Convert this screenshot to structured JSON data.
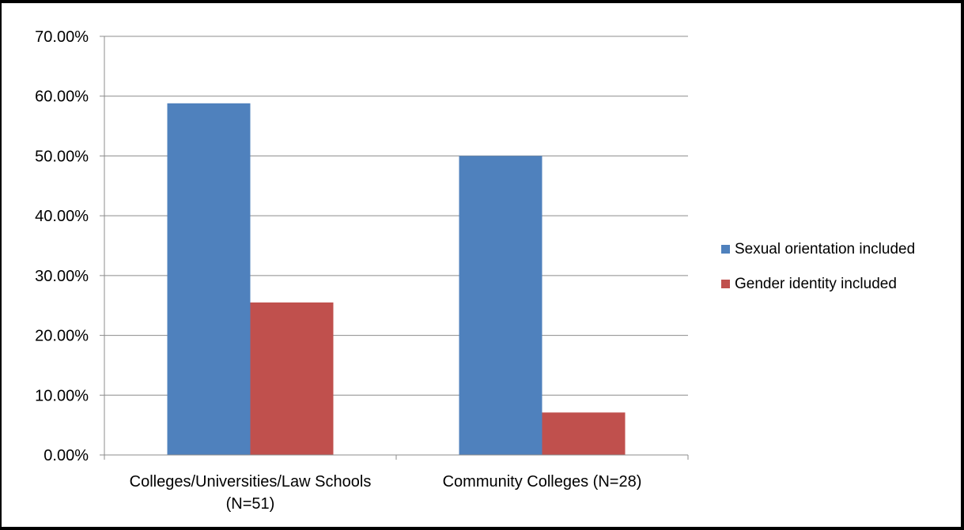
{
  "chart_data": {
    "type": "bar",
    "title": "",
    "xlabel": "",
    "ylabel": "",
    "categories": [
      "Colleges/Universities/Law Schools (N=51)",
      "Community Colleges (N=28)"
    ],
    "category_lines": [
      [
        "Colleges/Universities/Law Schools",
        "(N=51)"
      ],
      [
        "Community Colleges (N=28)"
      ]
    ],
    "series": [
      {
        "name": "Sexual orientation included",
        "color": "#4f81bd",
        "values": [
          58.8,
          50.0
        ]
      },
      {
        "name": "Gender identity included",
        "color": "#c0504d",
        "values": [
          25.5,
          7.1
        ]
      }
    ],
    "ylim": [
      0,
      70
    ],
    "yticks": [
      0,
      10,
      20,
      30,
      40,
      50,
      60,
      70
    ],
    "ytick_labels": [
      "0.00%",
      "10.00%",
      "20.00%",
      "30.00%",
      "40.00%",
      "50.00%",
      "60.00%",
      "70.00%"
    ],
    "grid": true,
    "legend_position": "right"
  }
}
